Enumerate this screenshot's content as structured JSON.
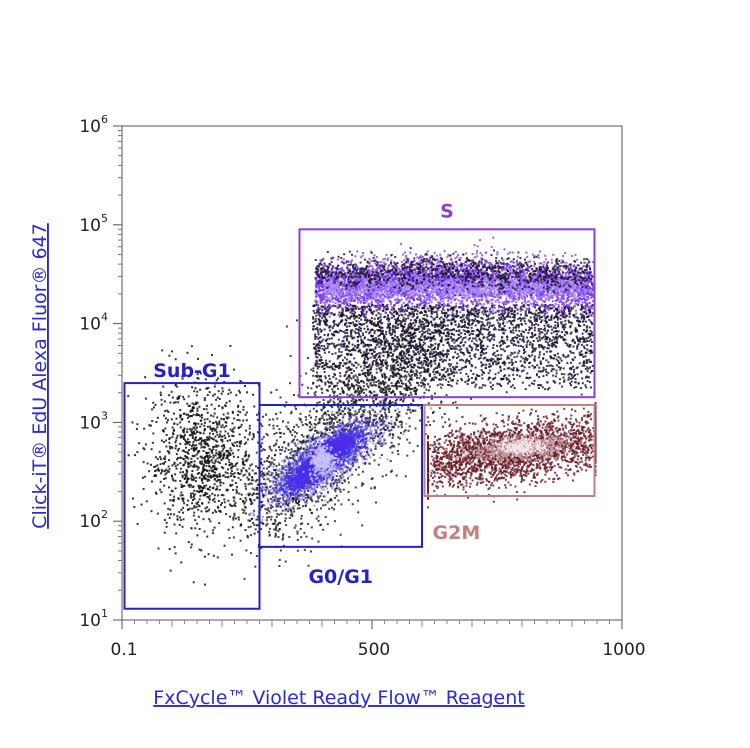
{
  "chart_data": {
    "type": "scatter",
    "title": "",
    "xlabel": "FxCycle™ Violet Ready Flow™ Reagent",
    "ylabel": "Click-iT® EdU Alexa Fluor® 647",
    "x_scale": "linear",
    "y_scale": "log",
    "xlim": [
      0,
      1000
    ],
    "ylim": [
      10,
      1000000
    ],
    "x_ticks": [
      {
        "value": 0.1,
        "label": "0.1"
      },
      {
        "value": 500,
        "label": "500"
      },
      {
        "value": 1000,
        "label": "1000"
      }
    ],
    "y_ticks": [
      {
        "value": 10,
        "base": "10",
        "exp": "1"
      },
      {
        "value": 100,
        "base": "10",
        "exp": "2"
      },
      {
        "value": 1000,
        "base": "10",
        "exp": "3"
      },
      {
        "value": 10000,
        "base": "10",
        "exp": "4"
      },
      {
        "value": 100000,
        "base": "10",
        "exp": "5"
      },
      {
        "value": 1000000,
        "base": "10",
        "exp": "6"
      }
    ],
    "grid": false,
    "legend": "none",
    "gates": [
      {
        "name": "Sub-G1",
        "color": "#2222c8",
        "x": [
          5,
          275
        ],
        "y": [
          13,
          2500
        ]
      },
      {
        "name": "G0/G1",
        "color": "#2222c8",
        "x": [
          275,
          600
        ],
        "y": [
          55,
          1500
        ]
      },
      {
        "name": "S",
        "color": "#8b3fd6",
        "x": [
          355,
          945
        ],
        "y": [
          1800,
          90000
        ]
      },
      {
        "name": "G2M",
        "color": "#c28080",
        "x": [
          605,
          945
        ],
        "y": [
          180,
          1500
        ]
      }
    ],
    "populations": [
      {
        "gate": "Sub-G1",
        "center_x": 160,
        "center_y": 450,
        "spread_x": 55,
        "spread_y_log10": 0.38,
        "color": "#111111"
      },
      {
        "gate": "G0/G1",
        "center_x": 400,
        "center_y": 420,
        "spread_x": 28,
        "spread_y_log10": 0.17,
        "color": "#4a2ee8"
      },
      {
        "gate": "S",
        "center_x": 660,
        "center_y": 24000,
        "spread_x": 160,
        "spread_y_log10": 0.12,
        "color": "#7b3cf0"
      },
      {
        "gate": "G2M",
        "center_x": 780,
        "center_y": 520,
        "spread_x": 60,
        "spread_y_log10": 0.16,
        "color": "#6b1f2a"
      }
    ]
  }
}
